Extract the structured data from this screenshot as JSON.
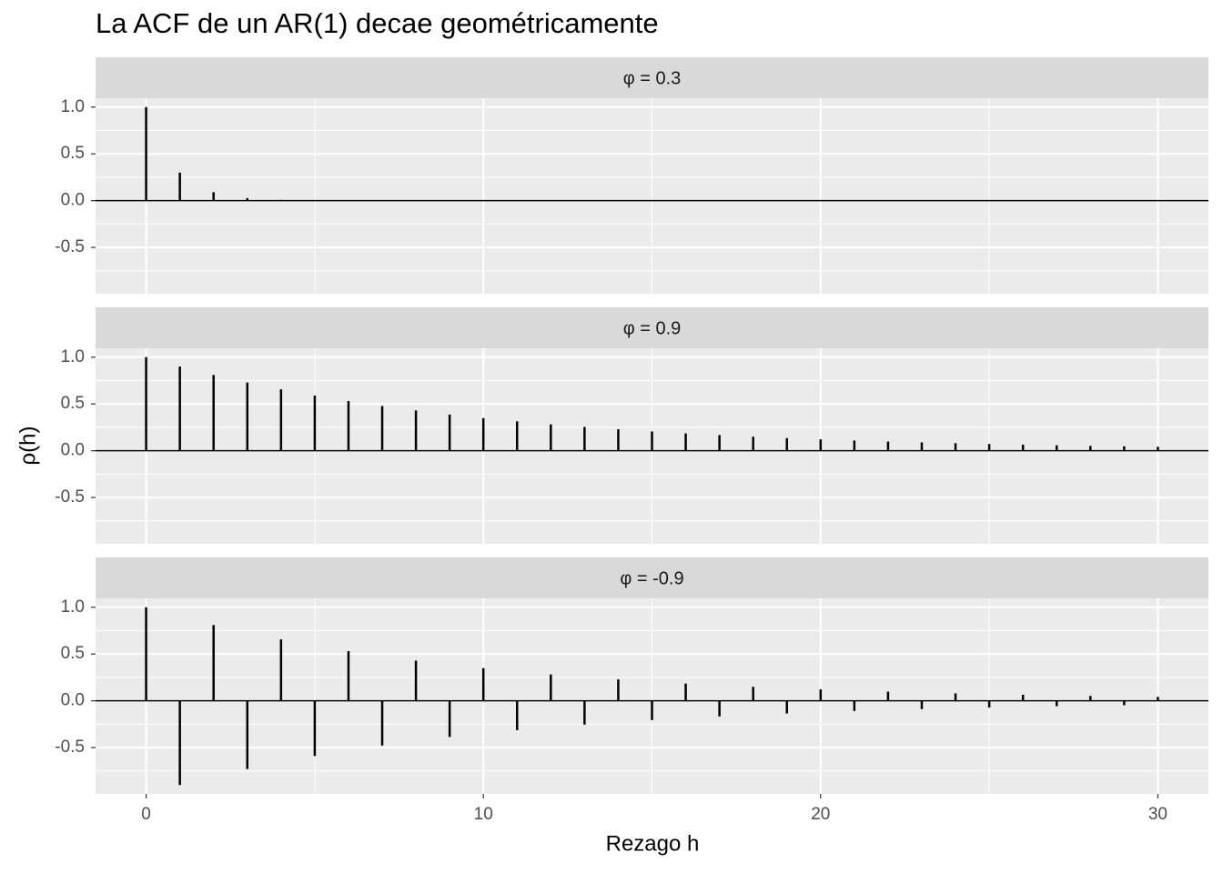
{
  "title": "La ACF de un AR(1) decae geométricamente",
  "x_label": "Rezago h",
  "y_label": "ρ(h)",
  "chart_data": [
    {
      "type": "stem",
      "facet": "φ = 0.3",
      "color": "#000000",
      "grid": true,
      "x": [
        0,
        1,
        2,
        3,
        4,
        5,
        6,
        7,
        8,
        9,
        10,
        11,
        12,
        13,
        14,
        15,
        16,
        17,
        18,
        19,
        20,
        21,
        22,
        23,
        24,
        25,
        26,
        27,
        28,
        29,
        30
      ],
      "values": [
        1,
        0.3,
        0.09,
        0.027,
        0.0081,
        0.0024,
        0.0007,
        0.0002,
        0.0001,
        0,
        0,
        0,
        0,
        0,
        0,
        0,
        0,
        0,
        0,
        0,
        0,
        0,
        0,
        0,
        0,
        0,
        0,
        0,
        0,
        0,
        0
      ],
      "xlim": [
        -1.5,
        31.5
      ],
      "xticks": [
        0,
        10,
        20,
        30
      ],
      "ylim": [
        -0.995,
        1.095
      ],
      "yticks": [
        {
          "value": -0.5,
          "label": "-0.5"
        },
        {
          "value": 0,
          "label": "0.0"
        },
        {
          "value": 0.5,
          "label": "0.5"
        },
        {
          "value": 1,
          "label": "1.0"
        }
      ]
    },
    {
      "type": "stem",
      "facet": "φ = 0.9",
      "color": "#000000",
      "grid": true,
      "x": [
        0,
        1,
        2,
        3,
        4,
        5,
        6,
        7,
        8,
        9,
        10,
        11,
        12,
        13,
        14,
        15,
        16,
        17,
        18,
        19,
        20,
        21,
        22,
        23,
        24,
        25,
        26,
        27,
        28,
        29,
        30
      ],
      "values": [
        1,
        0.9,
        0.81,
        0.729,
        0.656,
        0.59,
        0.531,
        0.478,
        0.43,
        0.387,
        0.349,
        0.314,
        0.282,
        0.254,
        0.229,
        0.206,
        0.185,
        0.167,
        0.15,
        0.135,
        0.122,
        0.109,
        0.098,
        0.089,
        0.08,
        0.072,
        0.065,
        0.058,
        0.052,
        0.047,
        0.042
      ],
      "xlim": [
        -1.5,
        31.5
      ],
      "xticks": [
        0,
        10,
        20,
        30
      ],
      "ylim": [
        -0.995,
        1.095
      ],
      "yticks": [
        {
          "value": -0.5,
          "label": "-0.5"
        },
        {
          "value": 0,
          "label": "0.0"
        },
        {
          "value": 0.5,
          "label": "0.5"
        },
        {
          "value": 1,
          "label": "1.0"
        }
      ]
    },
    {
      "type": "stem",
      "facet": "φ = -0.9",
      "color": "#000000",
      "grid": true,
      "x": [
        0,
        1,
        2,
        3,
        4,
        5,
        6,
        7,
        8,
        9,
        10,
        11,
        12,
        13,
        14,
        15,
        16,
        17,
        18,
        19,
        20,
        21,
        22,
        23,
        24,
        25,
        26,
        27,
        28,
        29,
        30
      ],
      "values": [
        1,
        -0.9,
        0.81,
        -0.729,
        0.656,
        -0.59,
        0.531,
        -0.478,
        0.43,
        -0.387,
        0.349,
        -0.314,
        0.282,
        -0.254,
        0.229,
        -0.206,
        0.185,
        -0.167,
        0.15,
        -0.135,
        0.122,
        -0.109,
        0.098,
        -0.089,
        0.08,
        -0.072,
        0.065,
        -0.058,
        0.052,
        -0.047,
        0.042
      ],
      "xlim": [
        -1.5,
        31.5
      ],
      "xticks": [
        0,
        10,
        20,
        30
      ],
      "ylim": [
        -0.995,
        1.095
      ],
      "yticks": [
        {
          "value": -0.5,
          "label": "-0.5"
        },
        {
          "value": 0,
          "label": "0.0"
        },
        {
          "value": 0.5,
          "label": "0.5"
        },
        {
          "value": 1,
          "label": "1.0"
        }
      ]
    }
  ]
}
